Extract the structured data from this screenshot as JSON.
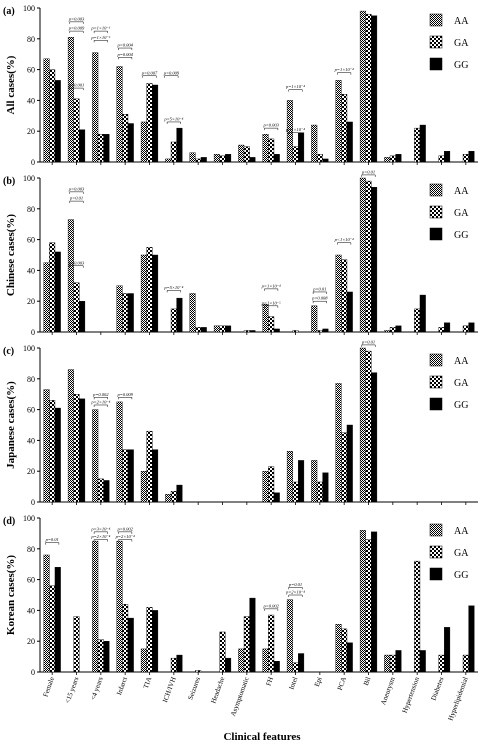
{
  "chart_data": [
    {
      "type": "bar",
      "panel_label": "(a)",
      "ylabel": "All cases(%)",
      "ylim": [
        0,
        100
      ],
      "yticks": [
        0,
        20,
        40,
        60,
        80,
        100
      ],
      "categories": [
        "Female",
        "<15 years",
        "<4 years",
        "Infarct",
        "TIA",
        "ICH/IVH",
        "Seizures",
        "Headache",
        "Asymptomatic",
        "FH",
        "Intel",
        "Epi",
        "PCA",
        "Bil",
        "Aneurysm",
        "Hypertension",
        "Diabetes",
        "Hyperlipidemial"
      ],
      "series": [
        {
          "name": "AA",
          "values": [
            67,
            81,
            71,
            62,
            26,
            2,
            6,
            5,
            11,
            18,
            40,
            24,
            53,
            98,
            3,
            0,
            0,
            0
          ]
        },
        {
          "name": "GA",
          "values": [
            60,
            41,
            18,
            31,
            51,
            13,
            2,
            4,
            10,
            15,
            10,
            5,
            44,
            96,
            4,
            22,
            4,
            5
          ]
        },
        {
          "name": "GG",
          "values": [
            53,
            21,
            18,
            25,
            50,
            22,
            3,
            5,
            3,
            5,
            19,
            2,
            26,
            95,
            5,
            24,
            7,
            7
          ]
        }
      ],
      "annotations": [
        {
          "text": "p=0.003",
          "category": "<15 years",
          "level": 91
        },
        {
          "text": "p=0.009",
          "category": "<15 years",
          "level": 85
        },
        {
          "text": "p=0.001",
          "category": "<15 years",
          "level": 48
        },
        {
          "text": "p=1×10⁻⁶",
          "category": "<4 years",
          "level": 85
        },
        {
          "text": "p=1×10⁻⁵",
          "category": "<4 years",
          "level": 79
        },
        {
          "text": "p=0.004",
          "category": "Infarct",
          "level": 74
        },
        {
          "text": "p=0.004",
          "category": "Infarct",
          "level": 68
        },
        {
          "text": "p=0.007",
          "category": "TIA",
          "level": 56
        },
        {
          "text": "p=0.009",
          "category": "TIA",
          "level": 56
        },
        {
          "text": "p=5×10⁻⁴",
          "category": "ICH/IVH",
          "level": 26
        },
        {
          "text": "p=0.003",
          "category": "FH",
          "level": 22
        },
        {
          "text": "p=1×10⁻⁴",
          "category": "Intel",
          "level": 47
        },
        {
          "text": "p=1×10⁻⁴",
          "category": "PCA",
          "level": 58
        },
        {
          "text": "p=1×10⁻⁴",
          "category": "Intel",
          "level": 19
        }
      ]
    },
    {
      "type": "bar",
      "panel_label": "(b)",
      "ylabel": "Chinese cases(%)",
      "ylim": [
        0,
        100
      ],
      "yticks": [
        0,
        20,
        40,
        60,
        80,
        100
      ],
      "categories": [
        "Female",
        "<15 years",
        "<4 years",
        "Infarct",
        "TIA",
        "ICH/IVH",
        "Seizures",
        "Headache",
        "Asymptomatic",
        "FH",
        "Intel",
        "Epi",
        "PCA",
        "Bil",
        "Aneurysm",
        "Hypertension",
        "Diabetes",
        "Hyperlipidemial"
      ],
      "series": [
        {
          "name": "AA",
          "values": [
            45,
            73,
            0,
            30,
            50,
            0,
            25,
            4,
            0,
            18,
            0,
            17,
            50,
            100,
            1,
            0,
            0,
            0
          ]
        },
        {
          "name": "GA",
          "values": [
            58,
            32,
            0,
            25,
            55,
            15,
            3,
            4,
            1,
            10,
            1,
            1,
            47,
            98,
            3,
            15,
            3,
            4
          ]
        },
        {
          "name": "GG",
          "values": [
            52,
            20,
            0,
            25,
            50,
            22,
            3,
            4,
            1,
            2,
            0,
            2,
            26,
            94,
            4,
            24,
            6,
            6
          ]
        }
      ],
      "annotations": [
        {
          "text": "p=0.003",
          "category": "<15 years",
          "level": 91
        },
        {
          "text": "p=0.01",
          "category": "<15 years",
          "level": 85
        },
        {
          "text": "p=0.003",
          "category": "<15 years",
          "level": 43
        },
        {
          "text": "p=5×10⁻⁴",
          "category": "ICH/IVH",
          "level": 27
        },
        {
          "text": "p=1×10⁻⁴",
          "category": "FH",
          "level": 28
        },
        {
          "text": "p=1×10⁻⁵",
          "category": "FH",
          "level": 17
        },
        {
          "text": "p=0.01",
          "category": "Epi",
          "level": 26
        },
        {
          "text": "p=0.008",
          "category": "Epi",
          "level": 20
        },
        {
          "text": "p<1×10⁻⁴",
          "category": "PCA",
          "level": 58
        },
        {
          "text": "p=0.01",
          "category": "Bil",
          "level": 102
        }
      ]
    },
    {
      "type": "bar",
      "panel_label": "(c)",
      "ylabel": "Japanese cases(%)",
      "ylim": [
        0,
        100
      ],
      "yticks": [
        0,
        20,
        40,
        60,
        80,
        100
      ],
      "categories": [
        "Female",
        "<15 years",
        "<4 years",
        "Infarct",
        "TIA",
        "ICH/IVH",
        "Seizures",
        "Headache",
        "Asymptomatic",
        "FH",
        "Intel",
        "Epi",
        "PCA",
        "Bil",
        "Aneurysm",
        "Hypertension",
        "Diabetes",
        "Hyperlipidemial"
      ],
      "series": [
        {
          "name": "AA",
          "values": [
            73,
            86,
            60,
            65,
            20,
            5,
            0,
            0,
            0,
            20,
            33,
            27,
            77,
            100,
            0,
            0,
            0,
            0
          ]
        },
        {
          "name": "GA",
          "values": [
            66,
            70,
            15,
            34,
            46,
            7,
            0,
            0,
            0,
            23,
            13,
            13,
            45,
            98,
            0,
            0,
            0,
            0
          ]
        },
        {
          "name": "GG",
          "values": [
            61,
            67,
            14,
            34,
            34,
            11,
            0,
            0,
            0,
            6,
            27,
            19,
            50,
            84,
            0,
            0,
            0,
            0
          ]
        }
      ],
      "annotations": [
        {
          "text": "p=0.002",
          "category": "<4 years",
          "level": 68
        },
        {
          "text": "p=2×10⁻⁴",
          "category": "<4 years",
          "level": 63
        },
        {
          "text": "p=0.009",
          "category": "Infarct",
          "level": 68
        },
        {
          "text": "p=0.01",
          "category": "Bil",
          "level": 102
        }
      ]
    },
    {
      "type": "bar",
      "panel_label": "(d)",
      "ylabel": "Korean cases(%)",
      "ylim": [
        0,
        100
      ],
      "yticks": [
        0,
        20,
        40,
        60,
        80,
        100
      ],
      "categories": [
        "Female",
        "<15 years",
        "<4 years",
        "Infarct",
        "TIA",
        "ICH/IVH",
        "Seizures",
        "Headache",
        "Asymptomatic",
        "FH",
        "Intel",
        "Epi",
        "PCA",
        "Bil",
        "Aneurysm",
        "Hypertension",
        "Diabetes",
        "Hyperlipidemial"
      ],
      "series": [
        {
          "name": "AA",
          "values": [
            76,
            0,
            85,
            85,
            15,
            0,
            0,
            0,
            15,
            15,
            47,
            0,
            31,
            92,
            11,
            0,
            0,
            0
          ]
        },
        {
          "name": "GA",
          "values": [
            56,
            36,
            21,
            44,
            42,
            9,
            1,
            26,
            36,
            37,
            6,
            0,
            28,
            86,
            11,
            72,
            11,
            11
          ]
        },
        {
          "name": "GG",
          "values": [
            68,
            0,
            20,
            35,
            40,
            11,
            0,
            9,
            48,
            7,
            12,
            0,
            19,
            91,
            14,
            14,
            29,
            43
          ]
        }
      ],
      "annotations": [
        {
          "text": "p=0.01",
          "category": "Female",
          "level": 84
        },
        {
          "text": "p=3×10⁻⁴",
          "category": "<4 years",
          "level": 91
        },
        {
          "text": "p=2×10⁻⁴",
          "category": "<4 years",
          "level": 86
        },
        {
          "text": "p=0.002",
          "category": "Infarct",
          "level": 91
        },
        {
          "text": "p=2×10⁻⁴",
          "category": "Infarct",
          "level": 86
        },
        {
          "text": "p=0.002",
          "category": "FH",
          "level": 41
        },
        {
          "text": "p=0.01",
          "category": "Intel",
          "level": 55
        },
        {
          "text": "p=2×10⁻⁴",
          "category": "Intel",
          "level": 50
        }
      ]
    }
  ],
  "legend": [
    {
      "name": "AA",
      "pattern": "dense-check"
    },
    {
      "name": "GA",
      "pattern": "checker"
    },
    {
      "name": "GG",
      "pattern": "solid-black"
    }
  ],
  "x_axis_title": "Clinical features",
  "colors": {
    "axis": "#000000",
    "solid_bar": "#000000",
    "pattern_light": "#ffffff"
  }
}
